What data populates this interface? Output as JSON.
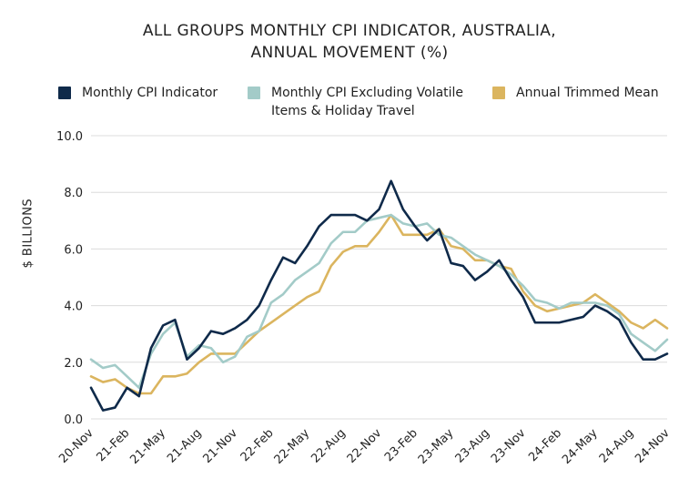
{
  "chart_data": {
    "type": "line",
    "title_lines": [
      "ALL GROUPS MONTHLY CPI INDICATOR, AUSTRALIA,",
      "ANNUAL MOVEMENT (%)"
    ],
    "ylabel": "$ BILLIONS",
    "xlabel": "",
    "ylim": [
      0,
      10
    ],
    "yticks": [
      "0.0",
      "2.0",
      "4.0",
      "6.0",
      "8.0",
      "10.0"
    ],
    "ytick_values": [
      0,
      2,
      4,
      6,
      8,
      10
    ],
    "grid": true,
    "legend_position": "top",
    "x_count": 49,
    "xticks": [
      {
        "label": "20-Nov",
        "index": 0
      },
      {
        "label": "21-Feb",
        "index": 3
      },
      {
        "label": "21-May",
        "index": 6
      },
      {
        "label": "21-Aug",
        "index": 9
      },
      {
        "label": "21-Nov",
        "index": 12
      },
      {
        "label": "22-Feb",
        "index": 15
      },
      {
        "label": "22-May",
        "index": 18
      },
      {
        "label": "22-Aug",
        "index": 21
      },
      {
        "label": "22-Nov",
        "index": 24
      },
      {
        "label": "23-Feb",
        "index": 27
      },
      {
        "label": "23-May",
        "index": 30
      },
      {
        "label": "23-Aug",
        "index": 33
      },
      {
        "label": "23-Nov",
        "index": 36
      },
      {
        "label": "24-Feb",
        "index": 39
      },
      {
        "label": "24-May",
        "index": 42
      },
      {
        "label": "24-Aug",
        "index": 45
      },
      {
        "label": "24-Nov",
        "index": 48
      }
    ],
    "series": [
      {
        "name": "Monthly CPI Indicator",
        "color": "#0f2a4a",
        "values": [
          1.1,
          0.3,
          0.4,
          1.1,
          0.8,
          2.5,
          3.3,
          3.5,
          2.1,
          2.5,
          3.1,
          3.0,
          3.2,
          3.5,
          4.0,
          4.9,
          5.7,
          5.5,
          6.1,
          6.8,
          7.2,
          7.2,
          7.2,
          7.0,
          7.4,
          8.4,
          7.4,
          6.8,
          6.3,
          6.7,
          5.5,
          5.4,
          4.9,
          5.2,
          5.6,
          4.9,
          4.3,
          3.4,
          3.4,
          3.4,
          3.5,
          3.6,
          4.0,
          3.8,
          3.5,
          2.7,
          2.1,
          2.1,
          2.3
        ]
      },
      {
        "name": "Monthly CPI Excluding Volatile Items & Holiday Travel",
        "color": "#a3cbc8",
        "values": [
          2.1,
          1.8,
          1.9,
          1.5,
          1.1,
          2.3,
          3.0,
          3.4,
          2.2,
          2.6,
          2.5,
          2.0,
          2.2,
          2.9,
          3.1,
          4.1,
          4.4,
          4.9,
          5.2,
          5.5,
          6.2,
          6.6,
          6.6,
          7.0,
          7.1,
          7.2,
          6.9,
          6.8,
          6.9,
          6.5,
          6.4,
          6.1,
          5.8,
          5.6,
          5.4,
          5.1,
          4.7,
          4.2,
          4.1,
          3.9,
          4.1,
          4.1,
          4.1,
          4.0,
          3.7,
          3.0,
          2.7,
          2.4,
          2.8
        ]
      },
      {
        "name": "Annual Trimmed Mean",
        "color": "#dbb55f",
        "values": [
          1.5,
          1.3,
          1.4,
          1.1,
          0.9,
          0.9,
          1.5,
          1.5,
          1.6,
          2.0,
          2.3,
          2.3,
          2.3,
          2.7,
          3.1,
          3.4,
          3.7,
          4.0,
          4.3,
          4.5,
          5.4,
          5.9,
          6.1,
          6.1,
          6.6,
          7.2,
          6.5,
          6.5,
          6.5,
          6.7,
          6.1,
          6.0,
          5.6,
          5.6,
          5.4,
          5.3,
          4.5,
          4.0,
          3.8,
          3.9,
          4.0,
          4.1,
          4.4,
          4.1,
          3.8,
          3.4,
          3.2,
          3.5,
          3.2
        ]
      }
    ]
  }
}
